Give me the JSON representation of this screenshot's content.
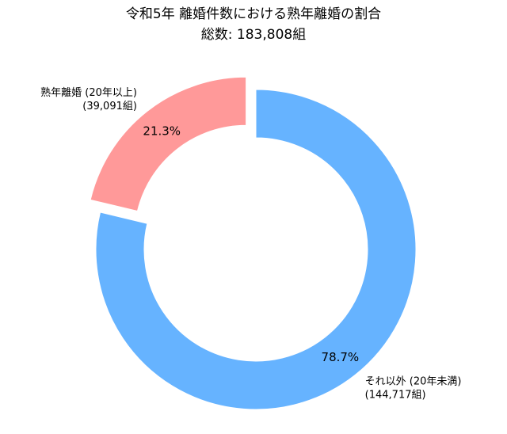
{
  "chart_data": {
    "type": "pie",
    "variant": "donut",
    "title": "令和5年 離婚件数における熟年離婚の割合",
    "subtitle": "総数: 183,808組",
    "slices": [
      {
        "label": "熟年離婚 (20年以上)",
        "count_label": "(39,091組)",
        "value": 39091,
        "percent_label": "21.3%",
        "color": "#ff9999",
        "exploded": true
      },
      {
        "label": "それ以外 (20年未満)",
        "count_label": "(144,717組)",
        "value": 144717,
        "percent_label": "78.7%",
        "color": "#66b3ff",
        "exploded": false
      }
    ],
    "start_angle": 90,
    "direction": "counterclockwise"
  }
}
